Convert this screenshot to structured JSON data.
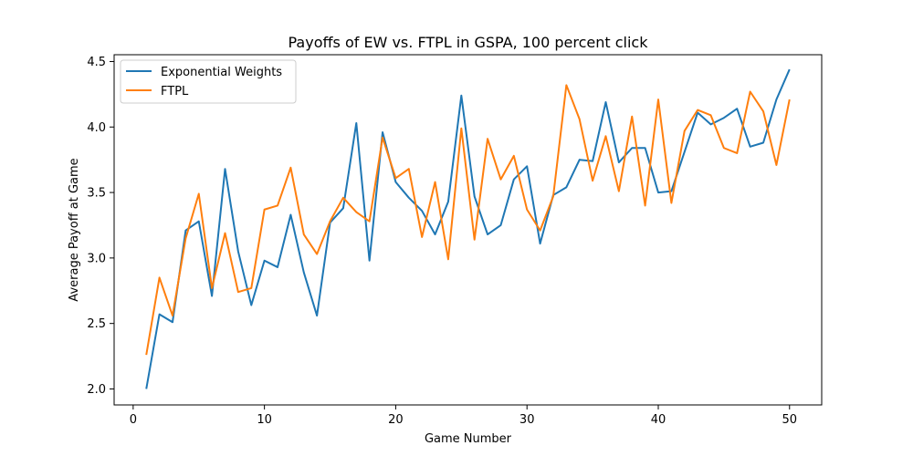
{
  "chart_data": {
    "type": "line",
    "title": "Payoffs of EW vs. FTPL in GSPA, 100 percent click",
    "xlabel": "Game Number",
    "ylabel": "Average Payoff at Game",
    "xlim": [
      -1.45,
      52.45
    ],
    "ylim": [
      1.878,
      4.552
    ],
    "xticks": [
      0,
      10,
      20,
      30,
      40,
      50
    ],
    "yticks": [
      2.0,
      2.5,
      3.0,
      3.5,
      4.0,
      4.5
    ],
    "ytick_labels": [
      "2.0",
      "2.5",
      "3.0",
      "3.5",
      "4.0",
      "4.5"
    ],
    "xtick_labels": [
      "0",
      "10",
      "20",
      "30",
      "40",
      "50"
    ],
    "legend_position": "top-left",
    "grid": false,
    "x": [
      1,
      2,
      3,
      4,
      5,
      6,
      7,
      8,
      9,
      10,
      11,
      12,
      13,
      14,
      15,
      16,
      17,
      18,
      19,
      20,
      21,
      22,
      23,
      24,
      25,
      26,
      27,
      28,
      29,
      30,
      31,
      32,
      33,
      34,
      35,
      36,
      37,
      38,
      39,
      40,
      41,
      42,
      43,
      44,
      45,
      46,
      47,
      48,
      49,
      50
    ],
    "series": [
      {
        "name": "Exponential Weights",
        "color": "#1f77b4",
        "values": [
          2.0,
          2.57,
          2.51,
          3.21,
          3.28,
          2.71,
          3.68,
          3.05,
          2.64,
          2.98,
          2.93,
          3.33,
          2.89,
          2.56,
          3.27,
          3.38,
          4.03,
          2.98,
          3.96,
          3.58,
          3.46,
          3.36,
          3.18,
          3.43,
          4.24,
          3.47,
          3.18,
          3.25,
          3.6,
          3.7,
          3.11,
          3.48,
          3.54,
          3.75,
          3.74,
          4.19,
          3.73,
          3.84,
          3.84,
          3.5,
          3.51,
          3.81,
          4.11,
          4.02,
          4.07,
          4.14,
          3.85,
          3.88,
          4.21,
          4.44
        ]
      },
      {
        "name": "FTPL",
        "color": "#ff7f0e",
        "values": [
          2.26,
          2.85,
          2.56,
          3.15,
          3.49,
          2.77,
          3.19,
          2.74,
          2.77,
          3.37,
          3.4,
          3.69,
          3.18,
          3.03,
          3.28,
          3.46,
          3.35,
          3.28,
          3.92,
          3.61,
          3.68,
          3.16,
          3.58,
          2.99,
          3.99,
          3.14,
          3.91,
          3.6,
          3.78,
          3.37,
          3.21,
          3.47,
          4.32,
          4.06,
          3.59,
          3.93,
          3.51,
          4.08,
          3.4,
          4.21,
          3.42,
          3.97,
          4.13,
          4.09,
          3.84,
          3.8,
          4.27,
          4.12,
          3.71,
          4.21
        ]
      }
    ]
  }
}
